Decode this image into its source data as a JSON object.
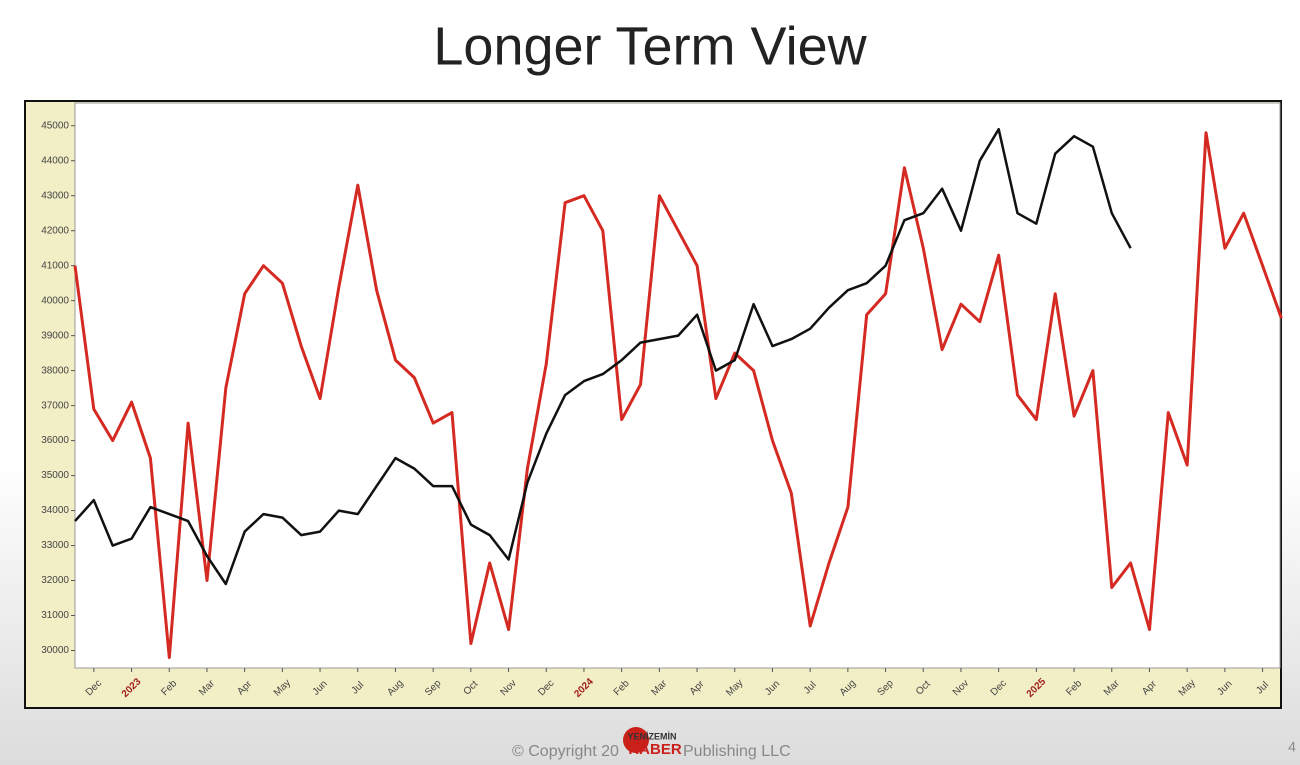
{
  "slide": {
    "title": "Longer Term View",
    "footer_left": "© Copyright 20",
    "footer_right": "Publishing LLC",
    "watermark_top": "YENİZEMİN",
    "watermark_bottom": "HABER",
    "page_number": "4"
  },
  "chart_data": {
    "type": "line",
    "categories": [
      null,
      "Dec",
      null,
      "2023",
      null,
      "Feb",
      null,
      "Mar",
      null,
      "Apr",
      null,
      "May",
      null,
      "Jun",
      null,
      "Jul",
      null,
      "Aug",
      null,
      "Sep",
      null,
      "Oct",
      null,
      "Nov",
      null,
      "Dec",
      null,
      "2024",
      null,
      "Feb",
      null,
      "Mar",
      null,
      "Apr",
      null,
      "May",
      null,
      "Jun",
      null,
      "Jul",
      null,
      "Aug",
      null,
      "Sep",
      null,
      "Oct",
      null,
      "Nov",
      null,
      "Dec",
      null,
      "2025",
      null,
      "Feb",
      null,
      "Mar",
      null,
      "Apr",
      null,
      "May",
      null,
      "Jun",
      null,
      "Jul",
      null
    ],
    "year_label_color": "#a0201c",
    "series": [
      {
        "color": "#d42a22",
        "values": [
          41000,
          36900,
          36000,
          37100,
          35500,
          29800,
          36500,
          32000,
          37500,
          40200,
          41000,
          40500,
          38700,
          37200,
          40400,
          43300,
          40300,
          38300,
          37800,
          36500,
          36800,
          30200,
          32500,
          30600,
          35200,
          38200,
          42800,
          43000,
          42000,
          36600,
          37600,
          43000,
          42000,
          41000,
          37200,
          38500,
          38000,
          36000,
          34500,
          30700,
          32500,
          34100,
          39600,
          40200,
          43800,
          41500,
          38600,
          39900,
          39400,
          41300,
          37300,
          36600,
          40200,
          36700,
          38000,
          31800,
          32500,
          30600,
          36800,
          35300,
          44800,
          41500,
          42500,
          41000,
          39500
        ]
      },
      {
        "color": "#111111",
        "values": [
          33700,
          34300,
          33000,
          33200,
          34100,
          33900,
          33700,
          32700,
          31900,
          33400,
          33900,
          33800,
          33300,
          33400,
          34000,
          33900,
          34700,
          35500,
          35200,
          34700,
          34700,
          33600,
          33300,
          32600,
          34800,
          36200,
          37300,
          37700,
          37900,
          38300,
          38800,
          38900,
          39000,
          39600,
          38000,
          38300,
          39900,
          38700,
          38900,
          39200,
          39800,
          40300,
          40500,
          41000,
          42300,
          42500,
          43200,
          42000,
          44000,
          44900,
          42500,
          42200,
          44200,
          44700,
          44400,
          42500,
          41500,
          null,
          null,
          null,
          null,
          null,
          null,
          null,
          null
        ]
      }
    ],
    "ylim": [
      29500,
      45650
    ],
    "yticks": [
      30000,
      31000,
      32000,
      33000,
      34000,
      35000,
      36000,
      37000,
      38000,
      39000,
      40000,
      41000,
      42000,
      43000,
      44000,
      45000
    ]
  }
}
